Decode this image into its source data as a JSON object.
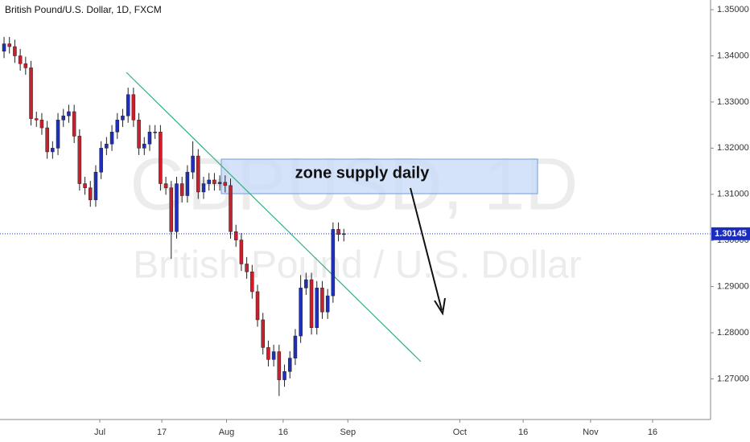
{
  "chart_data": {
    "type": "candlestick",
    "title": "British Pound/U.S. Dollar, 1D, FXCM",
    "watermark": "GBPUSD, 1D",
    "watermark_subtitle": "British Pound / U.S. Dollar",
    "annotation": "zone supply daily",
    "last_price": 1.30145,
    "up_color": "#1f2fb8",
    "down_color": "#cf1d2b",
    "grid": false,
    "open": [
      1.341,
      1.3426,
      1.342,
      1.34,
      1.3383,
      1.3374,
      1.3264,
      1.3261,
      1.3244,
      1.3192,
      1.32,
      1.3261,
      1.327,
      1.3279,
      1.3226,
      1.3123,
      1.3114,
      1.3088,
      1.3148,
      1.32,
      1.3209,
      1.3235,
      1.3261,
      1.327,
      1.3316,
      1.3261,
      1.32,
      1.3209,
      1.3235,
      1.3235,
      1.3123,
      1.3114,
      1.3019,
      1.3123,
      1.3097,
      1.3148,
      1.3183,
      1.3105,
      1.3123,
      1.3131,
      1.3123,
      1.3126,
      1.3119,
      1.3019,
      1.3001,
      1.2949,
      1.2932,
      1.2889,
      1.2828,
      1.2768,
      1.2742,
      1.2759,
      1.2698,
      1.2716,
      1.2745,
      1.2793,
      1.2897,
      1.2915,
      1.2811,
      1.2897,
      1.2845,
      1.288,
      1.3024,
      1.3013
    ],
    "high": [
      1.3441,
      1.3441,
      1.3435,
      1.3415,
      1.3398,
      1.3389,
      1.3279,
      1.3276,
      1.3259,
      1.3215,
      1.3276,
      1.3285,
      1.3294,
      1.3294,
      1.3241,
      1.3138,
      1.3129,
      1.3163,
      1.3215,
      1.3224,
      1.325,
      1.3276,
      1.3285,
      1.3331,
      1.3331,
      1.3276,
      1.3224,
      1.325,
      1.325,
      1.325,
      1.3138,
      1.3129,
      1.3138,
      1.3138,
      1.3163,
      1.3215,
      1.3198,
      1.3138,
      1.3146,
      1.3146,
      1.3141,
      1.3141,
      1.3134,
      1.3034,
      1.3016,
      1.2964,
      1.2947,
      1.2904,
      1.2843,
      1.2783,
      1.2774,
      1.2774,
      1.2731,
      1.276,
      1.2808,
      1.2925,
      1.293,
      1.293,
      1.2912,
      1.2912,
      1.2895,
      1.3039,
      1.3039,
      1.3025
    ],
    "low": [
      1.3395,
      1.3405,
      1.3385,
      1.3368,
      1.3359,
      1.3249,
      1.3246,
      1.3229,
      1.3177,
      1.3177,
      1.3185,
      1.3246,
      1.3255,
      1.3211,
      1.3108,
      1.3099,
      1.3073,
      1.3073,
      1.3133,
      1.3185,
      1.3194,
      1.322,
      1.3246,
      1.3255,
      1.3246,
      1.3185,
      1.3185,
      1.3194,
      1.322,
      1.3108,
      1.3099,
      1.296,
      1.3004,
      1.3082,
      1.3082,
      1.3133,
      1.309,
      1.309,
      1.3108,
      1.3108,
      1.3108,
      1.3104,
      1.3004,
      1.2986,
      1.2934,
      1.2917,
      1.2874,
      1.2813,
      1.2753,
      1.2727,
      1.2727,
      1.2663,
      1.2683,
      1.2701,
      1.273,
      1.2778,
      1.2882,
      1.2796,
      1.2796,
      1.283,
      1.283,
      1.2865,
      1.2998,
      1.2998
    ],
    "close": [
      1.3426,
      1.342,
      1.34,
      1.3383,
      1.3374,
      1.3264,
      1.3261,
      1.3244,
      1.3192,
      1.32,
      1.3261,
      1.327,
      1.3279,
      1.3226,
      1.3123,
      1.3114,
      1.3088,
      1.3148,
      1.32,
      1.3209,
      1.3235,
      1.3261,
      1.327,
      1.3316,
      1.3261,
      1.32,
      1.3209,
      1.3235,
      1.3235,
      1.3123,
      1.3114,
      1.3019,
      1.3123,
      1.3097,
      1.3148,
      1.3183,
      1.3105,
      1.3123,
      1.3131,
      1.3123,
      1.3126,
      1.3119,
      1.3019,
      1.3001,
      1.2949,
      1.2932,
      1.2889,
      1.2828,
      1.2768,
      1.2742,
      1.2759,
      1.2698,
      1.2716,
      1.2745,
      1.2793,
      1.2897,
      1.2915,
      1.2811,
      1.2897,
      1.2845,
      1.288,
      1.3024,
      1.3013,
      1.30145
    ],
    "xlim": [
      -0.75,
      131
    ],
    "xticks": [
      {
        "value": 17.75,
        "label": "Jul"
      },
      {
        "value": 29.25,
        "label": "17"
      },
      {
        "value": 41.25,
        "label": "Aug"
      },
      {
        "value": 51.75,
        "label": "16"
      },
      {
        "value": 63.75,
        "label": "Sep"
      },
      {
        "value": 84.5,
        "label": "Oct"
      },
      {
        "value": 96.25,
        "label": "16"
      },
      {
        "value": 108.75,
        "label": "Nov"
      },
      {
        "value": 120.25,
        "label": "16"
      }
    ],
    "ylim": [
      1.2612,
      1.3521
    ],
    "yticks": [
      {
        "value": 1.27,
        "label": "1.27000"
      },
      {
        "value": 1.28,
        "label": "1.28000"
      },
      {
        "value": 1.29,
        "label": "1.29000"
      },
      {
        "value": 1.3,
        "label": "1.30000"
      },
      {
        "value": 1.31,
        "label": "1.31000"
      },
      {
        "value": 1.32,
        "label": "1.32000"
      },
      {
        "value": 1.33,
        "label": "1.33000"
      },
      {
        "value": 1.34,
        "label": "1.34000"
      },
      {
        "value": 1.35,
        "label": "1.35000"
      }
    ]
  }
}
